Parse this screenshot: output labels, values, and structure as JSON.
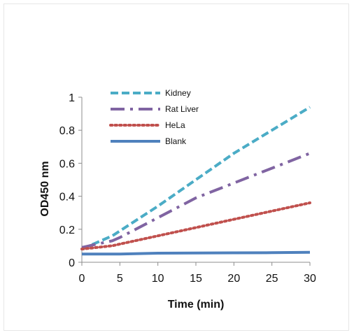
{
  "chart_data": {
    "type": "line",
    "title": "",
    "xlabel": "Time (min)",
    "ylabel": "OD450 nm",
    "xlim": [
      0,
      30
    ],
    "ylim": [
      0,
      1
    ],
    "x_ticks": [
      "0",
      "5",
      "10",
      "15",
      "20",
      "25",
      "30"
    ],
    "y_ticks": [
      "0",
      "0.2",
      "0.4",
      "0.6",
      "0.8",
      "1"
    ],
    "grid": false,
    "legend_position": "top-left",
    "x": [
      0,
      2,
      4,
      5,
      10,
      15,
      20,
      25,
      30
    ],
    "series": [
      {
        "name": "Kidney",
        "color": "#4bacc6",
        "dash": "dashed",
        "values": [
          0.08,
          0.12,
          0.16,
          0.19,
          0.34,
          0.5,
          0.66,
          0.8,
          0.94
        ]
      },
      {
        "name": "Rat Liver",
        "color": "#8064a2",
        "dash": "dash-dot",
        "values": [
          0.09,
          0.11,
          0.13,
          0.15,
          0.27,
          0.39,
          0.48,
          0.57,
          0.66
        ]
      },
      {
        "name": "HeLa",
        "color": "#c0504d",
        "dash": "dotted",
        "values": [
          0.08,
          0.09,
          0.1,
          0.11,
          0.16,
          0.21,
          0.26,
          0.31,
          0.36
        ]
      },
      {
        "name": "Blank",
        "color": "#4f81bd",
        "dash": "solid",
        "values": [
          0.05,
          0.05,
          0.05,
          0.05,
          0.055,
          0.056,
          0.057,
          0.058,
          0.06
        ]
      }
    ]
  }
}
